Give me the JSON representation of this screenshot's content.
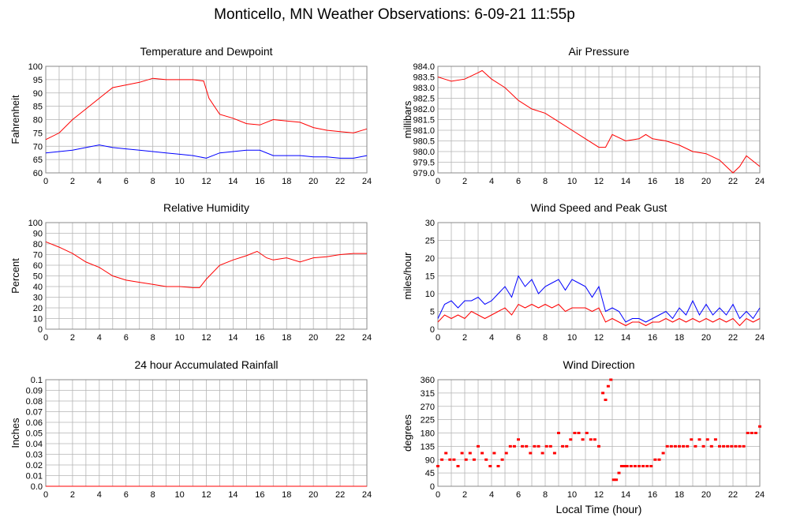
{
  "page_title": "Monticello, MN Weather Observations: 6-09-21 11:55p",
  "colors": {
    "temperature": "#ff0000",
    "dewpoint": "#0000ff",
    "grid": "#b4b4b4",
    "frame": "#888888"
  },
  "chart_data": [
    {
      "type": "line",
      "title": "Temperature and Dewpoint",
      "ylabel": "Fahrenheit",
      "xlim": [
        0,
        24
      ],
      "ylim": [
        60,
        100
      ],
      "xticks": [
        0,
        2,
        4,
        6,
        8,
        10,
        12,
        14,
        16,
        18,
        20,
        22,
        24
      ],
      "yticks": [
        "60",
        "65",
        "70",
        "75",
        "80",
        "85",
        "90",
        "95",
        "100"
      ],
      "grid": true,
      "series": [
        {
          "color": "#ff0000",
          "x": [
            0,
            1,
            2,
            3,
            4,
            5,
            6,
            7,
            8,
            9,
            10,
            11,
            11.8,
            12.2,
            13,
            14,
            15,
            16,
            17,
            18,
            19,
            20,
            21,
            22,
            23,
            24
          ],
          "y": [
            72.5,
            75,
            80,
            84,
            88,
            92,
            93,
            94,
            95.5,
            95,
            95,
            95,
            94.5,
            88,
            82,
            80.5,
            78.5,
            78,
            80,
            79.5,
            79,
            77,
            76,
            75.5,
            75,
            76.5
          ]
        },
        {
          "color": "#0000ff",
          "x": [
            0,
            1,
            2,
            3,
            4,
            5,
            6,
            7,
            8,
            9,
            10,
            11,
            12,
            13,
            14,
            15,
            16,
            17,
            18,
            19,
            20,
            21,
            22,
            23,
            24
          ],
          "y": [
            67.5,
            68,
            68.5,
            69.5,
            70.5,
            69.5,
            69,
            68.5,
            68,
            67.5,
            67,
            66.5,
            65.5,
            67.5,
            68,
            68.5,
            68.5,
            66.5,
            66.5,
            66.5,
            66,
            66,
            65.5,
            65.5,
            66.5
          ]
        }
      ]
    },
    {
      "type": "line",
      "title": "Air Pressure",
      "ylabel": "millibars",
      "xlim": [
        0,
        24
      ],
      "ylim": [
        979.0,
        984.0
      ],
      "xticks": [
        0,
        2,
        4,
        6,
        8,
        10,
        12,
        14,
        16,
        18,
        20,
        22,
        24
      ],
      "yticks": [
        "979.0",
        "979.5",
        "980.0",
        "980.5",
        "981.0",
        "981.5",
        "982.0",
        "982.5",
        "983.0",
        "983.5",
        "984.0"
      ],
      "grid": true,
      "series": [
        {
          "color": "#ff0000",
          "x": [
            0,
            0.5,
            1,
            2,
            3,
            3.3,
            4,
            5,
            6,
            7,
            8,
            9,
            10,
            11,
            12,
            12.5,
            13,
            14,
            15,
            15.5,
            16,
            17,
            18,
            19,
            20,
            21,
            21.5,
            22,
            22.5,
            23,
            24
          ],
          "y": [
            983.5,
            983.4,
            983.3,
            983.4,
            983.7,
            983.8,
            983.4,
            983.0,
            982.4,
            982.0,
            981.8,
            981.4,
            981.0,
            980.6,
            980.2,
            980.2,
            980.8,
            980.5,
            980.6,
            980.8,
            980.6,
            980.5,
            980.3,
            980.0,
            979.9,
            979.6,
            979.3,
            979.0,
            979.3,
            979.8,
            979.3
          ]
        }
      ]
    },
    {
      "type": "line",
      "title": "Relative Humidity",
      "ylabel": "Percent",
      "xlim": [
        0,
        24
      ],
      "ylim": [
        0,
        100
      ],
      "xticks": [
        0,
        2,
        4,
        6,
        8,
        10,
        12,
        14,
        16,
        18,
        20,
        22,
        24
      ],
      "yticks": [
        "0",
        "10",
        "20",
        "30",
        "40",
        "50",
        "60",
        "70",
        "80",
        "90",
        "100"
      ],
      "grid": true,
      "series": [
        {
          "color": "#ff0000",
          "x": [
            0,
            1,
            2,
            3,
            4,
            5,
            6,
            7,
            8,
            9,
            10,
            11,
            11.5,
            12,
            13,
            14,
            15,
            15.8,
            16.5,
            17,
            18,
            19,
            20,
            21,
            22,
            23,
            24
          ],
          "y": [
            82,
            77,
            71,
            63,
            58,
            50,
            46,
            44,
            42,
            40,
            40,
            39,
            39,
            47,
            60,
            65,
            69,
            73,
            67,
            65,
            67,
            63,
            67,
            68,
            70,
            71,
            71
          ]
        }
      ]
    },
    {
      "type": "line",
      "title": "Wind Speed and Peak Gust",
      "ylabel": "miles/hour",
      "xlim": [
        0,
        24
      ],
      "ylim": [
        0,
        30
      ],
      "xticks": [
        0,
        2,
        4,
        6,
        8,
        10,
        12,
        14,
        16,
        18,
        20,
        22,
        24
      ],
      "yticks": [
        "0",
        "5",
        "10",
        "15",
        "20",
        "25",
        "30"
      ],
      "grid": true,
      "series": [
        {
          "color": "#0000ff",
          "x": [
            0,
            0.5,
            1,
            1.5,
            2,
            2.5,
            3,
            3.5,
            4,
            4.5,
            5,
            5.5,
            6,
            6.5,
            7,
            7.5,
            8,
            8.5,
            9,
            9.5,
            10,
            10.5,
            11,
            11.5,
            12,
            12.5,
            13,
            13.5,
            14,
            14.5,
            15,
            15.5,
            16,
            16.5,
            17,
            17.5,
            18,
            18.5,
            19,
            19.5,
            20,
            20.5,
            21,
            21.5,
            22,
            22.5,
            23,
            23.5,
            24
          ],
          "y": [
            3,
            7,
            8,
            6,
            8,
            8,
            9,
            7,
            8,
            10,
            12,
            9,
            15,
            12,
            14,
            10,
            12,
            13,
            14,
            11,
            14,
            13,
            12,
            9,
            12,
            5,
            6,
            5,
            2,
            3,
            3,
            2,
            3,
            4,
            5,
            3,
            6,
            4,
            8,
            4,
            7,
            4,
            6,
            4,
            7,
            3,
            5,
            3,
            6
          ]
        },
        {
          "color": "#ff0000",
          "x": [
            0,
            0.5,
            1,
            1.5,
            2,
            2.5,
            3,
            3.5,
            4,
            4.5,
            5,
            5.5,
            6,
            6.5,
            7,
            7.5,
            8,
            8.5,
            9,
            9.5,
            10,
            10.5,
            11,
            11.5,
            12,
            12.5,
            13,
            13.5,
            14,
            14.5,
            15,
            15.5,
            16,
            16.5,
            17,
            17.5,
            18,
            18.5,
            19,
            19.5,
            20,
            20.5,
            21,
            21.5,
            22,
            22.5,
            23,
            23.5,
            24
          ],
          "y": [
            2,
            4,
            3,
            4,
            3,
            5,
            4,
            3,
            4,
            5,
            6,
            4,
            7,
            6,
            7,
            6,
            7,
            6,
            7,
            5,
            6,
            6,
            6,
            5,
            6,
            2,
            3,
            2,
            1,
            2,
            2,
            1,
            2,
            2,
            3,
            2,
            3,
            2,
            3,
            2,
            3,
            2,
            3,
            2,
            3,
            1,
            3,
            2,
            3
          ]
        }
      ]
    },
    {
      "type": "line",
      "title": "24 hour Accumulated Rainfall",
      "ylabel": "Inches",
      "xlim": [
        0,
        24
      ],
      "ylim": [
        0,
        0.1
      ],
      "xticks": [
        0,
        2,
        4,
        6,
        8,
        10,
        12,
        14,
        16,
        18,
        20,
        22,
        24
      ],
      "yticks": [
        "0.0",
        "0.01",
        "0.02",
        "0.03",
        "0.04",
        "0.05",
        "0.06",
        "0.07",
        "0.08",
        "0.09",
        "0.1"
      ],
      "grid": true,
      "series": [
        {
          "color": "#ff0000",
          "x": [
            0,
            24
          ],
          "y": [
            0,
            0
          ]
        }
      ]
    },
    {
      "type": "scatter",
      "title": "Wind Direction",
      "ylabel": "degrees",
      "xlabel": "Local Time (hour)",
      "xlim": [
        0,
        24
      ],
      "ylim": [
        0,
        360
      ],
      "xticks": [
        0,
        2,
        4,
        6,
        8,
        10,
        12,
        14,
        16,
        18,
        20,
        22,
        24
      ],
      "yticks": [
        "0",
        "45",
        "90",
        "135",
        "180",
        "225",
        "270",
        "315",
        "360"
      ],
      "grid": true,
      "series": [
        {
          "color": "#ff0000",
          "x": [
            0,
            0.3,
            0.6,
            0.9,
            1.2,
            1.5,
            1.8,
            2.1,
            2.4,
            2.7,
            3.0,
            3.3,
            3.6,
            3.9,
            4.2,
            4.5,
            4.8,
            5.1,
            5.4,
            5.7,
            6.0,
            6.3,
            6.6,
            6.9,
            7.2,
            7.5,
            7.8,
            8.1,
            8.4,
            8.7,
            9.0,
            9.3,
            9.6,
            9.9,
            10.2,
            10.5,
            10.8,
            11.1,
            11.4,
            11.7,
            12.0,
            12.3,
            12.5,
            12.7,
            12.9,
            13.1,
            13.3,
            13.5,
            13.7,
            13.9,
            14.1,
            14.4,
            14.7,
            15.0,
            15.3,
            15.6,
            15.9,
            16.2,
            16.5,
            16.8,
            17.1,
            17.4,
            17.7,
            18.0,
            18.3,
            18.6,
            18.9,
            19.2,
            19.5,
            19.8,
            20.1,
            20.4,
            20.7,
            21.0,
            21.3,
            21.6,
            21.9,
            22.2,
            22.5,
            22.8,
            23.1,
            23.4,
            23.7,
            24.0
          ],
          "y": [
            68,
            90,
            112,
            90,
            90,
            68,
            112,
            90,
            112,
            90,
            135,
            112,
            90,
            68,
            112,
            68,
            90,
            112,
            135,
            135,
            158,
            135,
            135,
            112,
            135,
            135,
            112,
            135,
            135,
            112,
            180,
            135,
            135,
            158,
            180,
            180,
            158,
            180,
            158,
            158,
            135,
            315,
            292,
            338,
            360,
            22,
            22,
            45,
            68,
            68,
            68,
            68,
            68,
            68,
            68,
            68,
            68,
            90,
            90,
            112,
            135,
            135,
            135,
            135,
            135,
            135,
            158,
            135,
            158,
            135,
            158,
            135,
            158,
            135,
            135,
            135,
            135,
            135,
            135,
            135,
            180,
            180,
            180,
            202
          ]
        }
      ]
    }
  ]
}
